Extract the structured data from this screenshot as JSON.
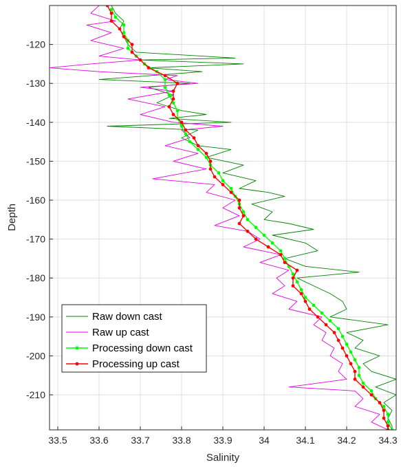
{
  "chart_data": {
    "type": "line",
    "title": "",
    "xlabel": "Salinity",
    "ylabel": "Depth",
    "xlim": [
      33.48,
      34.32
    ],
    "ylim": [
      -219,
      -110
    ],
    "xticks": [
      33.5,
      33.6,
      33.7,
      33.8,
      33.9,
      34,
      34.1,
      34.2,
      34.3
    ],
    "xtick_labels": [
      "33.5",
      "33.6",
      "33.7",
      "33.8",
      "33.9",
      "34",
      "34.1",
      "34.2",
      "34.3"
    ],
    "yticks": [
      -120,
      -130,
      -140,
      -150,
      -160,
      -170,
      -180,
      -190,
      -200,
      -210
    ],
    "ytick_labels": [
      "-120",
      "-130",
      "-140",
      "-150",
      "-160",
      "-170",
      "-180",
      "-190",
      "-200",
      "-210"
    ],
    "grid": true,
    "legend_position": "bottom-left",
    "series": [
      {
        "name": "Raw down cast",
        "color": "#007f00",
        "style": "line",
        "points": [
          [
            33.63,
            -110
          ],
          [
            33.64,
            -112
          ],
          [
            33.66,
            -114
          ],
          [
            33.65,
            -116
          ],
          [
            33.66,
            -118
          ],
          [
            33.67,
            -120
          ],
          [
            33.69,
            -122
          ],
          [
            33.93,
            -123.5
          ],
          [
            33.7,
            -124
          ],
          [
            33.95,
            -125
          ],
          [
            33.72,
            -126
          ],
          [
            33.85,
            -127
          ],
          [
            33.6,
            -129
          ],
          [
            33.82,
            -130
          ],
          [
            33.72,
            -131
          ],
          [
            33.78,
            -133
          ],
          [
            33.74,
            -135
          ],
          [
            33.8,
            -137
          ],
          [
            33.86,
            -138
          ],
          [
            33.77,
            -139
          ],
          [
            33.92,
            -140
          ],
          [
            33.62,
            -141
          ],
          [
            33.84,
            -142
          ],
          [
            33.8,
            -144
          ],
          [
            33.84,
            -146
          ],
          [
            33.92,
            -147
          ],
          [
            33.86,
            -149
          ],
          [
            33.95,
            -151
          ],
          [
            33.9,
            -153
          ],
          [
            33.98,
            -155
          ],
          [
            33.94,
            -157
          ],
          [
            34.01,
            -158
          ],
          [
            34.05,
            -159
          ],
          [
            33.97,
            -161
          ],
          [
            34.02,
            -163
          ],
          [
            34.0,
            -165
          ],
          [
            34.06,
            -166
          ],
          [
            34.12,
            -167.5
          ],
          [
            34.02,
            -169
          ],
          [
            34.1,
            -171
          ],
          [
            34.13,
            -173
          ],
          [
            34.05,
            -175
          ],
          [
            34.1,
            -177
          ],
          [
            34.23,
            -178.5
          ],
          [
            34.08,
            -180
          ],
          [
            34.12,
            -182
          ],
          [
            34.16,
            -184
          ],
          [
            34.19,
            -186
          ],
          [
            34.2,
            -188
          ],
          [
            34.16,
            -190
          ],
          [
            34.3,
            -192
          ],
          [
            34.2,
            -194
          ],
          [
            34.24,
            -196
          ],
          [
            34.22,
            -198
          ],
          [
            34.28,
            -200
          ],
          [
            34.24,
            -202
          ],
          [
            34.26,
            -204
          ],
          [
            34.32,
            -206
          ],
          [
            34.27,
            -208
          ],
          [
            34.32,
            -210
          ],
          [
            34.29,
            -212
          ],
          [
            34.31,
            -214
          ],
          [
            34.3,
            -216
          ],
          [
            34.31,
            -218
          ],
          [
            34.31,
            -219
          ]
        ]
      },
      {
        "name": "Raw up cast",
        "color": "#e000e0",
        "style": "line",
        "points": [
          [
            33.6,
            -110
          ],
          [
            33.58,
            -112
          ],
          [
            33.64,
            -114
          ],
          [
            33.57,
            -115
          ],
          [
            33.63,
            -117
          ],
          [
            33.58,
            -119
          ],
          [
            33.66,
            -121
          ],
          [
            33.6,
            -123
          ],
          [
            33.7,
            -124
          ],
          [
            33.58,
            -125
          ],
          [
            33.48,
            -126
          ],
          [
            33.6,
            -127
          ],
          [
            33.79,
            -128
          ],
          [
            33.76,
            -129
          ],
          [
            33.84,
            -130
          ],
          [
            33.7,
            -131
          ],
          [
            33.78,
            -132
          ],
          [
            33.67,
            -134
          ],
          [
            33.76,
            -136
          ],
          [
            33.7,
            -138
          ],
          [
            33.78,
            -140
          ],
          [
            33.9,
            -141
          ],
          [
            33.8,
            -142
          ],
          [
            33.82,
            -144
          ],
          [
            33.76,
            -146
          ],
          [
            33.84,
            -148
          ],
          [
            33.78,
            -150
          ],
          [
            33.86,
            -152
          ],
          [
            33.73,
            -154.5
          ],
          [
            33.88,
            -156
          ],
          [
            33.86,
            -158
          ],
          [
            33.93,
            -160
          ],
          [
            33.9,
            -162
          ],
          [
            33.94,
            -164
          ],
          [
            33.88,
            -166.5
          ],
          [
            33.96,
            -168
          ],
          [
            33.99,
            -170
          ],
          [
            33.95,
            -172
          ],
          [
            34.04,
            -174
          ],
          [
            33.99,
            -176
          ],
          [
            34.06,
            -178
          ],
          [
            34.03,
            -180
          ],
          [
            34.05,
            -182
          ],
          [
            34.02,
            -184
          ],
          [
            34.08,
            -186
          ],
          [
            34.06,
            -188
          ],
          [
            34.14,
            -190
          ],
          [
            34.12,
            -192
          ],
          [
            34.15,
            -194
          ],
          [
            34.14,
            -196
          ],
          [
            34.17,
            -198
          ],
          [
            34.16,
            -200
          ],
          [
            34.19,
            -202
          ],
          [
            34.18,
            -204
          ],
          [
            34.2,
            -206
          ],
          [
            34.06,
            -208
          ],
          [
            34.22,
            -209
          ],
          [
            34.24,
            -211
          ],
          [
            34.22,
            -213
          ],
          [
            34.28,
            -215
          ],
          [
            34.26,
            -217
          ],
          [
            34.3,
            -219
          ]
        ]
      },
      {
        "name": "Processing down cast",
        "color": "#00ff00",
        "style": "line-dot",
        "points": [
          [
            33.63,
            -111
          ],
          [
            33.64,
            -113
          ],
          [
            33.66,
            -115
          ],
          [
            33.66,
            -117
          ],
          [
            33.67,
            -119
          ],
          [
            33.67,
            -121
          ],
          [
            33.69,
            -123
          ],
          [
            33.71,
            -125
          ],
          [
            33.74,
            -127
          ],
          [
            33.76,
            -129
          ],
          [
            33.76,
            -131
          ],
          [
            33.77,
            -133
          ],
          [
            33.78,
            -135
          ],
          [
            33.79,
            -137
          ],
          [
            33.79,
            -139
          ],
          [
            33.8,
            -141
          ],
          [
            33.81,
            -143
          ],
          [
            33.82,
            -145
          ],
          [
            33.84,
            -147
          ],
          [
            33.86,
            -149
          ],
          [
            33.87,
            -151
          ],
          [
            33.89,
            -153
          ],
          [
            33.9,
            -155
          ],
          [
            33.92,
            -157
          ],
          [
            33.93,
            -159
          ],
          [
            33.94,
            -161
          ],
          [
            33.95,
            -163
          ],
          [
            33.96,
            -165
          ],
          [
            33.98,
            -167
          ],
          [
            34.0,
            -169
          ],
          [
            34.02,
            -171
          ],
          [
            34.04,
            -173
          ],
          [
            34.05,
            -175
          ],
          [
            34.06,
            -177
          ],
          [
            34.07,
            -179
          ],
          [
            34.08,
            -181
          ],
          [
            34.09,
            -183
          ],
          [
            34.1,
            -185
          ],
          [
            34.12,
            -187
          ],
          [
            34.14,
            -189
          ],
          [
            34.16,
            -191
          ],
          [
            34.18,
            -193
          ],
          [
            34.19,
            -195
          ],
          [
            34.2,
            -197
          ],
          [
            34.21,
            -199
          ],
          [
            34.22,
            -201
          ],
          [
            34.23,
            -203
          ],
          [
            34.23,
            -205
          ],
          [
            34.24,
            -207
          ],
          [
            34.26,
            -209
          ],
          [
            34.27,
            -211
          ],
          [
            34.29,
            -213
          ],
          [
            34.3,
            -215
          ],
          [
            34.3,
            -217
          ],
          [
            34.31,
            -219
          ]
        ]
      },
      {
        "name": "Processing up cast",
        "color": "#ff0000",
        "style": "line-dot",
        "points": [
          [
            33.62,
            -110
          ],
          [
            33.63,
            -112
          ],
          [
            33.63,
            -114
          ],
          [
            33.65,
            -116
          ],
          [
            33.66,
            -118
          ],
          [
            33.68,
            -120
          ],
          [
            33.68,
            -122
          ],
          [
            33.7,
            -124
          ],
          [
            33.72,
            -126
          ],
          [
            33.76,
            -128
          ],
          [
            33.79,
            -130
          ],
          [
            33.78,
            -132
          ],
          [
            33.78,
            -134
          ],
          [
            33.77,
            -136
          ],
          [
            33.78,
            -138
          ],
          [
            33.8,
            -140
          ],
          [
            33.81,
            -142
          ],
          [
            33.83,
            -144
          ],
          [
            33.84,
            -146
          ],
          [
            33.86,
            -148
          ],
          [
            33.87,
            -150
          ],
          [
            33.87,
            -152
          ],
          [
            33.88,
            -154
          ],
          [
            33.9,
            -156
          ],
          [
            33.92,
            -158
          ],
          [
            33.94,
            -160
          ],
          [
            33.94,
            -162
          ],
          [
            33.95,
            -164
          ],
          [
            33.94,
            -166
          ],
          [
            33.96,
            -168
          ],
          [
            33.98,
            -170
          ],
          [
            34.01,
            -172
          ],
          [
            34.04,
            -174
          ],
          [
            34.05,
            -176
          ],
          [
            34.08,
            -178
          ],
          [
            34.07,
            -180
          ],
          [
            34.07,
            -182
          ],
          [
            34.09,
            -184
          ],
          [
            34.1,
            -186
          ],
          [
            34.11,
            -188
          ],
          [
            34.13,
            -190
          ],
          [
            34.15,
            -192
          ],
          [
            34.17,
            -194
          ],
          [
            34.18,
            -196
          ],
          [
            34.19,
            -198
          ],
          [
            34.2,
            -200
          ],
          [
            34.21,
            -202
          ],
          [
            34.22,
            -204
          ],
          [
            34.22,
            -206
          ],
          [
            34.24,
            -208
          ],
          [
            34.26,
            -210
          ],
          [
            34.28,
            -212
          ],
          [
            34.29,
            -214
          ],
          [
            34.29,
            -216
          ],
          [
            34.3,
            -218
          ],
          [
            34.3,
            -219
          ]
        ]
      }
    ]
  }
}
